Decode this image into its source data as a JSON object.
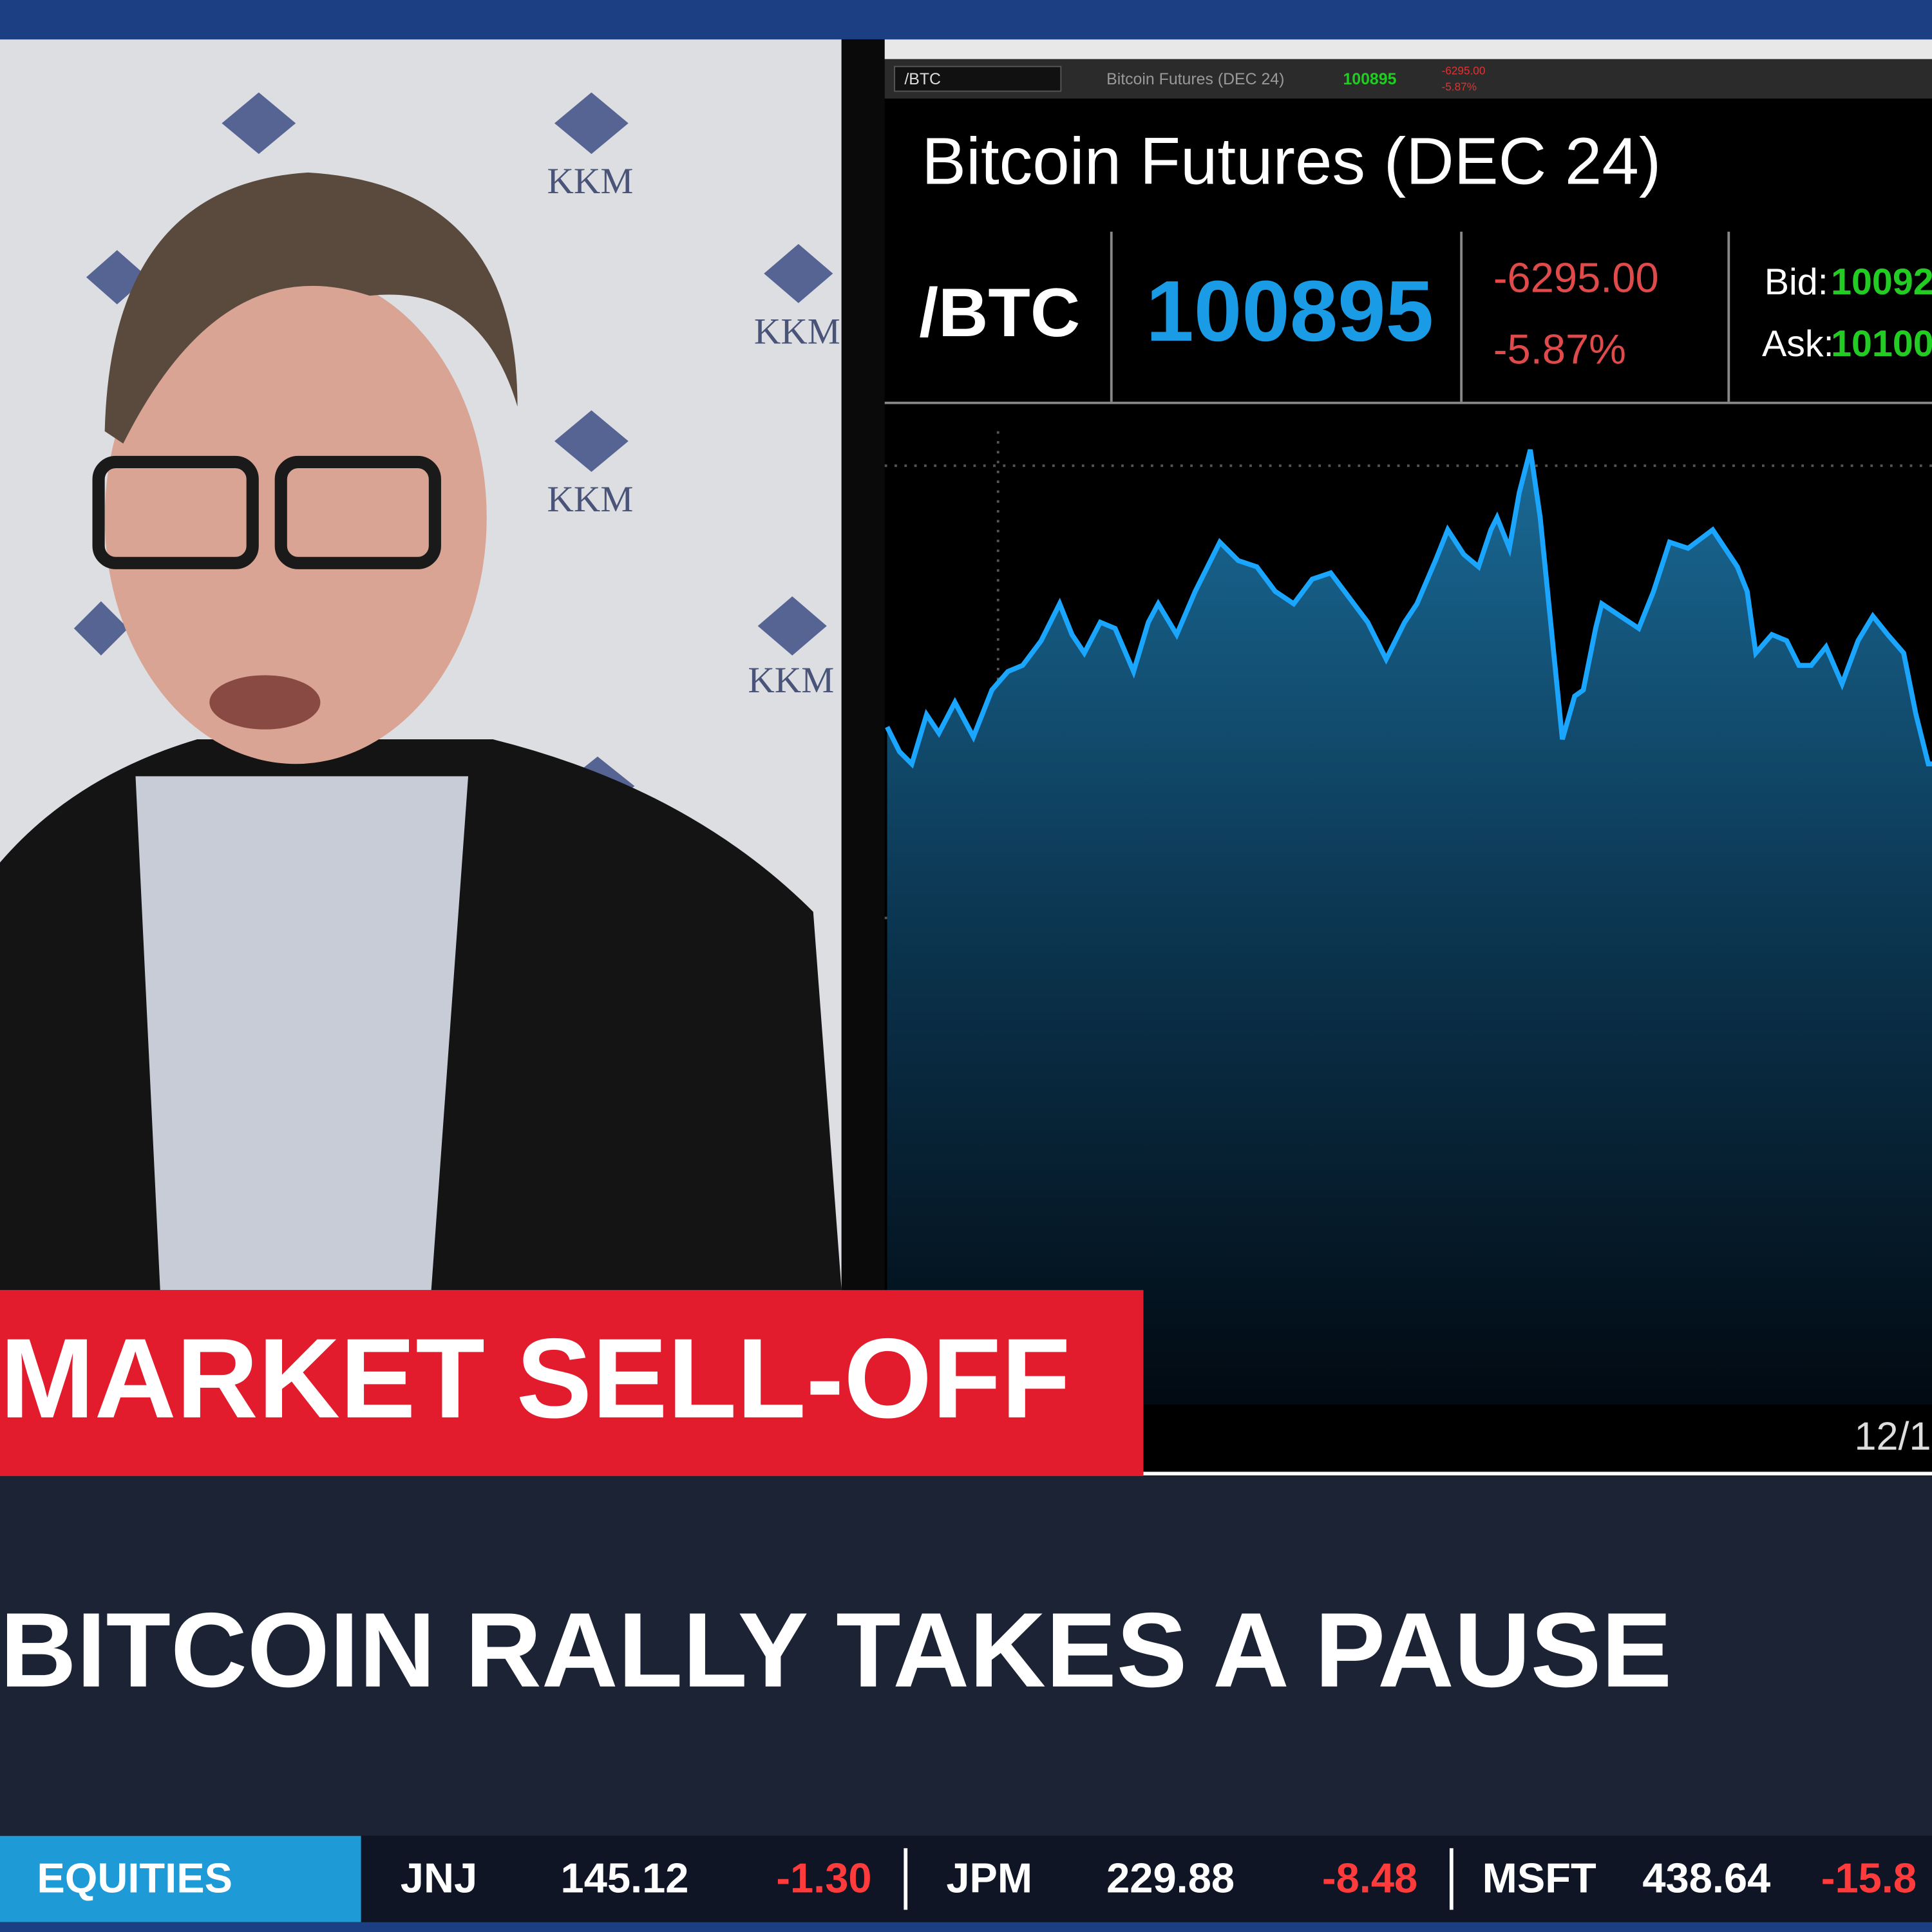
{
  "backdrop": {
    "logo_text": "KKM"
  },
  "platform": {
    "symbol": "/BTC",
    "description": "Bitcoin Futures (DEC 24)",
    "last": "100895",
    "change": "-6295.00",
    "change_pct": "-5.87%"
  },
  "quote_panel": {
    "title": "Bitcoin Futures (DEC 24)",
    "symbol": "/BTC",
    "last": "100895",
    "change": "-6295.00",
    "change_pct": "-5.87%",
    "bid_label": "Bid:",
    "bid": "10092",
    "ask_label": "Ask:",
    "ask": "10100",
    "date_label": "12/1"
  },
  "banner": {
    "topic": "MARKET SELL-OFF",
    "headline": "BITCOIN RALLY TAKES A PAUSE"
  },
  "ticker": {
    "section": "EQUITIES",
    "items": [
      {
        "symbol": "JNJ",
        "price": "145.12",
        "change": "-1.30"
      },
      {
        "symbol": "JPM",
        "price": "229.88",
        "change": "-8.48"
      },
      {
        "symbol": "MSFT",
        "price": "438.64",
        "change": "-15.8"
      }
    ]
  }
}
